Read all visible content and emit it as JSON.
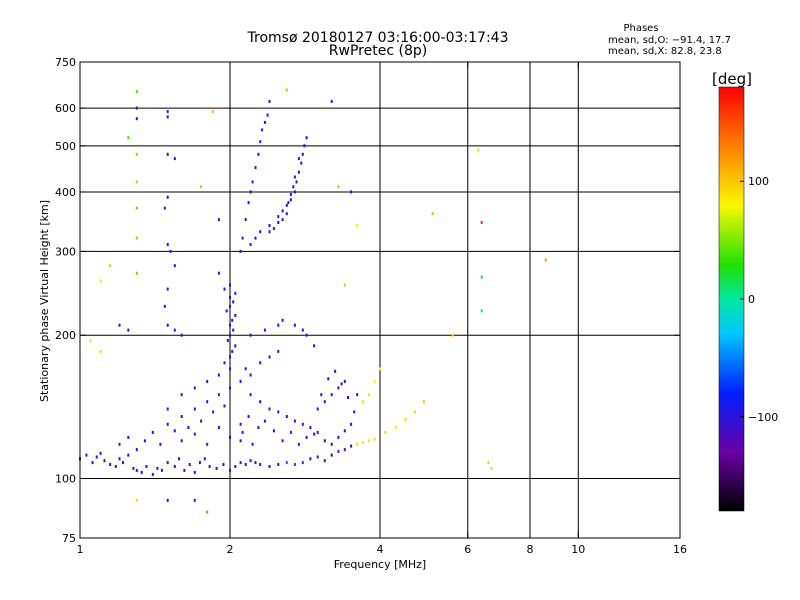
{
  "chart_data": {
    "type": "scatter",
    "title": "Tromsø 20180127 03:16:00-03:17:43",
    "subtitle": "RwPretec (8p)",
    "xlabel": "Frequency [MHz]",
    "ylabel": "Stationary phase Virtual Height [km]",
    "x_scale": "log",
    "y_scale": "log",
    "xlim": [
      1,
      16
    ],
    "ylim": [
      75,
      750
    ],
    "x_ticks": [
      1,
      2,
      4,
      6,
      8,
      10,
      16
    ],
    "x_tick_labels": [
      "1",
      "2",
      "4",
      "6",
      "8",
      "10",
      "16"
    ],
    "y_ticks": [
      75,
      100,
      200,
      300,
      400,
      500,
      600,
      750
    ],
    "y_tick_labels": [
      "75",
      "100",
      "200",
      "300",
      "400",
      "500",
      "600",
      "750"
    ],
    "x_grid_lines": [
      2,
      4,
      6,
      8,
      10
    ],
    "y_grid_lines": [
      100,
      200,
      300,
      400,
      500,
      600
    ],
    "grid": true,
    "stats": {
      "heading": "Phases",
      "line_o": "mean, sd,O: −91.4, 17.7",
      "line_x": "mean, sd,X:  82.8, 23.8"
    },
    "colorbar": {
      "label": "[deg]",
      "range": [
        -180,
        180
      ],
      "ticks": [
        100,
        0,
        -100
      ],
      "tick_labels": [
        "100",
        "0",
        "−100"
      ]
    },
    "points_encoding": "[frequency MHz, virtual height km, phase deg]",
    "points": [
      [
        1.0,
        110,
        -90
      ],
      [
        1.03,
        112,
        -95
      ],
      [
        1.06,
        108,
        -88
      ],
      [
        1.08,
        111,
        -92
      ],
      [
        1.1,
        113,
        -85
      ],
      [
        1.12,
        109,
        -100
      ],
      [
        1.15,
        107,
        -90
      ],
      [
        1.18,
        106,
        -95
      ],
      [
        1.2,
        110,
        -80
      ],
      [
        1.22,
        108,
        -92
      ],
      [
        1.25,
        112,
        -88
      ],
      [
        1.28,
        105,
        -95
      ],
      [
        1.3,
        104,
        -100
      ],
      [
        1.33,
        103,
        -90
      ],
      [
        1.36,
        106,
        -85
      ],
      [
        1.4,
        102,
        -95
      ],
      [
        1.43,
        105,
        -110
      ],
      [
        1.46,
        104,
        -90
      ],
      [
        1.5,
        108,
        -92
      ],
      [
        1.55,
        106,
        -88
      ],
      [
        1.58,
        110,
        -95
      ],
      [
        1.62,
        104,
        -100
      ],
      [
        1.66,
        107,
        -93
      ],
      [
        1.7,
        103,
        -90
      ],
      [
        1.74,
        108,
        -85
      ],
      [
        1.78,
        110,
        -92
      ],
      [
        1.82,
        106,
        -95
      ],
      [
        1.88,
        105,
        -88
      ],
      [
        1.94,
        107,
        -90
      ],
      [
        2.0,
        104,
        -95
      ],
      [
        2.05,
        106,
        -100
      ],
      [
        2.1,
        108,
        -90
      ],
      [
        2.15,
        107,
        -85
      ],
      [
        2.2,
        109,
        -95
      ],
      [
        2.25,
        108,
        -92
      ],
      [
        2.3,
        107,
        -90
      ],
      [
        2.4,
        106,
        -88
      ],
      [
        2.5,
        107,
        -95
      ],
      [
        2.6,
        108,
        -60
      ],
      [
        2.7,
        107,
        -65
      ],
      [
        2.8,
        108,
        -70
      ],
      [
        2.9,
        110,
        -95
      ],
      [
        3.0,
        111,
        -120
      ],
      [
        3.1,
        109,
        -135
      ],
      [
        3.2,
        112,
        -150
      ],
      [
        3.3,
        114,
        -125
      ],
      [
        3.4,
        115,
        -110
      ],
      [
        3.5,
        117,
        -100
      ],
      [
        3.6,
        118,
        70
      ],
      [
        3.7,
        119,
        75
      ],
      [
        3.8,
        120,
        85
      ],
      [
        3.9,
        121,
        90
      ],
      [
        4.1,
        125,
        90
      ],
      [
        4.3,
        128,
        88
      ],
      [
        4.5,
        133,
        92
      ],
      [
        4.7,
        138,
        95
      ],
      [
        4.9,
        145,
        100
      ],
      [
        1.2,
        118,
        -95
      ],
      [
        1.25,
        122,
        -90
      ],
      [
        1.3,
        115,
        -100
      ],
      [
        1.35,
        120,
        -92
      ],
      [
        1.4,
        125,
        -88
      ],
      [
        1.45,
        118,
        -95
      ],
      [
        1.5,
        130,
        -90
      ],
      [
        1.55,
        126,
        -100
      ],
      [
        1.6,
        135,
        -92
      ],
      [
        1.65,
        128,
        -88
      ],
      [
        1.7,
        140,
        -95
      ],
      [
        1.75,
        132,
        -90
      ],
      [
        1.8,
        145,
        -85
      ],
      [
        1.85,
        138,
        -95
      ],
      [
        1.9,
        150,
        -92
      ],
      [
        1.95,
        142,
        -90
      ],
      [
        2.0,
        155,
        -95
      ],
      [
        1.6,
        120,
        -100
      ],
      [
        1.7,
        124,
        -90
      ],
      [
        1.8,
        118,
        -95
      ],
      [
        1.9,
        128,
        -88
      ],
      [
        2.0,
        122,
        -92
      ],
      [
        2.1,
        130,
        -95
      ],
      [
        1.5,
        140,
        -90
      ],
      [
        1.6,
        150,
        -95
      ],
      [
        1.7,
        155,
        -100
      ],
      [
        1.8,
        160,
        -92
      ],
      [
        1.9,
        165,
        -88
      ],
      [
        2.0,
        170,
        -95
      ],
      [
        1.95,
        175,
        -90
      ],
      [
        2.0,
        180,
        -92
      ],
      [
        2.02,
        185,
        -95
      ],
      [
        2.05,
        190,
        -88
      ],
      [
        1.98,
        195,
        -90
      ],
      [
        2.0,
        200,
        -95
      ],
      [
        2.03,
        205,
        -92
      ],
      [
        2.0,
        210,
        -90
      ],
      [
        2.02,
        215,
        -95
      ],
      [
        2.05,
        220,
        -100
      ],
      [
        1.97,
        225,
        -92
      ],
      [
        2.0,
        230,
        -90
      ],
      [
        2.03,
        235,
        -88
      ],
      [
        2.0,
        240,
        -95
      ],
      [
        2.05,
        245,
        -92
      ],
      [
        1.95,
        250,
        -90
      ],
      [
        2.0,
        255,
        -95
      ],
      [
        2.1,
        160,
        -90
      ],
      [
        2.15,
        170,
        -88
      ],
      [
        2.2,
        165,
        -95
      ],
      [
        2.3,
        175,
        -92
      ],
      [
        2.4,
        180,
        -90
      ],
      [
        2.5,
        185,
        -95
      ],
      [
        2.2,
        150,
        -92
      ],
      [
        2.3,
        145,
        -88
      ],
      [
        2.4,
        140,
        -95
      ],
      [
        2.5,
        138,
        -100
      ],
      [
        2.6,
        135,
        -110
      ],
      [
        2.7,
        132,
        -120
      ],
      [
        2.8,
        130,
        -115
      ],
      [
        2.9,
        128,
        -105
      ],
      [
        3.0,
        140,
        -100
      ],
      [
        3.1,
        145,
        -110
      ],
      [
        3.2,
        150,
        -95
      ],
      [
        3.3,
        155,
        -120
      ],
      [
        3.4,
        160,
        -100
      ],
      [
        3.0,
        125,
        -130
      ],
      [
        3.1,
        120,
        -140
      ],
      [
        3.2,
        118,
        -135
      ],
      [
        3.3,
        122,
        -125
      ],
      [
        3.4,
        126,
        -110
      ],
      [
        3.5,
        130,
        -95
      ],
      [
        2.2,
        310,
        -95
      ],
      [
        2.25,
        320,
        -92
      ],
      [
        2.3,
        330,
        -90
      ],
      [
        2.4,
        340,
        -95
      ],
      [
        2.5,
        355,
        -100
      ],
      [
        2.55,
        365,
        -92
      ],
      [
        2.6,
        375,
        -88
      ],
      [
        2.65,
        385,
        -95
      ],
      [
        2.7,
        400,
        -90
      ],
      [
        2.72,
        420,
        -92
      ],
      [
        2.75,
        440,
        -95
      ],
      [
        2.78,
        460,
        -88
      ],
      [
        2.8,
        480,
        -90
      ],
      [
        2.82,
        500,
        -92
      ],
      [
        2.85,
        520,
        -95
      ],
      [
        2.4,
        330,
        -110
      ],
      [
        2.45,
        335,
        -100
      ],
      [
        2.5,
        345,
        -95
      ],
      [
        2.55,
        350,
        -92
      ],
      [
        2.6,
        360,
        -90
      ],
      [
        2.62,
        380,
        -95
      ],
      [
        2.65,
        395,
        -88
      ],
      [
        2.68,
        410,
        -92
      ],
      [
        2.7,
        430,
        -95
      ],
      [
        2.75,
        470,
        -90
      ],
      [
        2.1,
        300,
        -95
      ],
      [
        2.12,
        320,
        -92
      ],
      [
        2.15,
        350,
        -90
      ],
      [
        2.18,
        380,
        -95
      ],
      [
        2.2,
        400,
        -88
      ],
      [
        2.22,
        420,
        -92
      ],
      [
        2.25,
        450,
        -95
      ],
      [
        2.28,
        480,
        -90
      ],
      [
        2.3,
        510,
        -92
      ],
      [
        2.32,
        540,
        -95
      ],
      [
        2.35,
        560,
        -88
      ],
      [
        2.38,
        580,
        -90
      ],
      [
        2.4,
        620,
        -92
      ],
      [
        1.3,
        650,
        40
      ],
      [
        1.3,
        600,
        -90
      ],
      [
        1.3,
        570,
        -100
      ],
      [
        1.25,
        520,
        40
      ],
      [
        1.3,
        480,
        50
      ],
      [
        1.3,
        420,
        55
      ],
      [
        1.3,
        370,
        45
      ],
      [
        1.3,
        320,
        50
      ],
      [
        1.3,
        270,
        45
      ],
      [
        1.15,
        280,
        60
      ],
      [
        1.1,
        260,
        70
      ],
      [
        1.05,
        195,
        90
      ],
      [
        1.1,
        185,
        95
      ],
      [
        1.2,
        210,
        -95
      ],
      [
        1.25,
        205,
        -90
      ],
      [
        1.5,
        590,
        -95
      ],
      [
        1.5,
        575,
        -90
      ],
      [
        1.5,
        480,
        -92
      ],
      [
        1.55,
        470,
        -88
      ],
      [
        1.5,
        390,
        -95
      ],
      [
        1.48,
        370,
        -90
      ],
      [
        1.5,
        310,
        -92
      ],
      [
        1.52,
        300,
        -95
      ],
      [
        1.55,
        280,
        -90
      ],
      [
        1.5,
        250,
        -92
      ],
      [
        1.48,
        230,
        -88
      ],
      [
        1.5,
        210,
        -95
      ],
      [
        1.55,
        205,
        -90
      ],
      [
        1.6,
        200,
        -92
      ],
      [
        1.85,
        590,
        100
      ],
      [
        1.75,
        410,
        110
      ],
      [
        1.9,
        350,
        -95
      ],
      [
        1.9,
        270,
        -90
      ],
      [
        2.1,
        120,
        -90
      ],
      [
        2.12,
        125,
        -88
      ],
      [
        2.18,
        135,
        -95
      ],
      [
        2.22,
        118,
        -92
      ],
      [
        2.28,
        128,
        -90
      ],
      [
        2.35,
        132,
        -95
      ],
      [
        2.45,
        126,
        -88
      ],
      [
        2.55,
        120,
        -92
      ],
      [
        2.65,
        125,
        -90
      ],
      [
        2.75,
        118,
        -95
      ],
      [
        2.85,
        122,
        -100
      ],
      [
        2.95,
        124,
        -110
      ],
      [
        3.05,
        150,
        -100
      ],
      [
        3.15,
        162,
        -105
      ],
      [
        3.25,
        168,
        -110
      ],
      [
        3.35,
        158,
        -95
      ],
      [
        3.45,
        148,
        -100
      ],
      [
        3.55,
        138,
        -120
      ],
      [
        3.6,
        150,
        -100
      ],
      [
        3.7,
        145,
        70
      ],
      [
        3.8,
        150,
        75
      ],
      [
        3.9,
        160,
        80
      ],
      [
        4.0,
        170,
        80
      ],
      [
        3.2,
        620,
        -90
      ],
      [
        3.3,
        410,
        110
      ],
      [
        3.5,
        400,
        -95
      ],
      [
        3.6,
        340,
        85
      ],
      [
        3.4,
        255,
        60
      ],
      [
        5.1,
        360,
        110
      ],
      [
        5.6,
        200,
        95
      ],
      [
        6.3,
        490,
        90
      ],
      [
        6.4,
        345,
        160
      ],
      [
        6.4,
        265,
        -20
      ],
      [
        6.4,
        225,
        -20
      ],
      [
        6.6,
        108,
        95
      ],
      [
        6.7,
        105,
        95
      ],
      [
        8.6,
        288,
        120
      ],
      [
        1.3,
        90,
        90
      ],
      [
        1.5,
        90,
        -90
      ],
      [
        1.8,
        85,
        30
      ],
      [
        1.7,
        90,
        -130
      ],
      [
        2.6,
        655,
        110
      ],
      [
        2.2,
        200,
        -95
      ],
      [
        2.35,
        205,
        -90
      ],
      [
        2.5,
        210,
        -92
      ],
      [
        2.55,
        215,
        -88
      ],
      [
        2.7,
        210,
        -95
      ],
      [
        2.8,
        205,
        -100
      ],
      [
        2.85,
        200,
        -92
      ],
      [
        2.95,
        190,
        -90
      ]
    ]
  }
}
